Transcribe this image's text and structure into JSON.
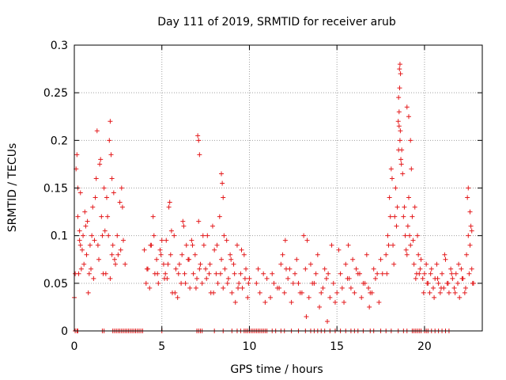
{
  "chart_data": {
    "type": "scatter",
    "title": "Day 111 of 2019, SRMTID for receiver arub",
    "xlabel": "GPS time / hours",
    "ylabel": "SRMTID / TECUs",
    "xlim": [
      0,
      23.3
    ],
    "ylim": [
      0,
      0.3
    ],
    "xticks": [
      "0",
      "5",
      "10",
      "15",
      "20"
    ],
    "xtick_values": [
      0,
      5,
      10,
      15,
      20
    ],
    "yticks": [
      "0",
      "0.05",
      "0.1",
      "0.15",
      "0.2",
      "0.25",
      "0.3"
    ],
    "ytick_values": [
      0,
      0.05,
      0.1,
      0.15,
      0.2,
      0.25,
      0.3
    ],
    "grid": true,
    "marker": "plus",
    "color": "#e41a1c",
    "series": [
      {
        "name": "SRMTID",
        "x": [
          0.0,
          0.1,
          0.15,
          0.2,
          0.25,
          0.3,
          0.35,
          0.4,
          0.5,
          0.6,
          0.7,
          0.8,
          0.9,
          1.0,
          1.1,
          1.2,
          1.3,
          1.4,
          1.5,
          1.6,
          1.7,
          1.8,
          1.9,
          2.0,
          2.05,
          2.1,
          2.15,
          2.2,
          2.3,
          2.5,
          2.6,
          2.7,
          2.75,
          2.8,
          2.9,
          0.05,
          0.3,
          0.55,
          0.75,
          1.05,
          1.35,
          1.65,
          1.95,
          2.25,
          2.45,
          0.2,
          0.45,
          0.65,
          0.85,
          1.15,
          1.45,
          1.75,
          2.05,
          2.35,
          2.65,
          0.35,
          0.95,
          1.25,
          1.55,
          1.85,
          2.15,
          4.0,
          4.1,
          4.2,
          4.3,
          4.4,
          4.5,
          4.6,
          4.7,
          4.8,
          4.9,
          5.0,
          5.1,
          5.2,
          5.3,
          5.4,
          5.5,
          5.6,
          5.7,
          5.8,
          5.9,
          6.0,
          6.1,
          6.2,
          6.3,
          6.4,
          6.5,
          6.6,
          6.7,
          6.8,
          6.9,
          7.0,
          7.1,
          7.2,
          7.3,
          7.4,
          7.5,
          7.6,
          7.7,
          7.8,
          7.9,
          8.0,
          8.1,
          8.2,
          8.3,
          8.4,
          8.5,
          8.6,
          8.7,
          8.8,
          8.9,
          9.0,
          9.1,
          9.2,
          9.3,
          9.4,
          9.5,
          9.6,
          9.7,
          9.8,
          9.9,
          10.0,
          4.15,
          4.35,
          4.55,
          4.75,
          4.95,
          5.15,
          5.35,
          5.55,
          5.75,
          5.95,
          6.15,
          6.35,
          6.55,
          6.75,
          6.95,
          7.15,
          7.35,
          7.55,
          7.75,
          7.95,
          8.15,
          8.35,
          8.55,
          8.75,
          8.95,
          9.15,
          9.35,
          9.55,
          9.75,
          9.95,
          5.45,
          5.25,
          6.25,
          7.05,
          7.1,
          7.15,
          8.4,
          8.45,
          8.5,
          10.4,
          10.6,
          10.8,
          11.0,
          11.2,
          11.4,
          11.6,
          11.8,
          12.0,
          12.2,
          12.4,
          12.6,
          12.8,
          13.0,
          13.2,
          13.4,
          13.6,
          13.8,
          14.0,
          14.2,
          14.4,
          14.6,
          14.8,
          15.0,
          15.2,
          15.4,
          15.6,
          15.8,
          16.0,
          16.2,
          16.4,
          16.6,
          16.8,
          17.0,
          17.2,
          17.4,
          17.6,
          10.5,
          10.9,
          11.3,
          11.7,
          12.1,
          12.5,
          12.9,
          13.3,
          13.7,
          14.1,
          14.5,
          14.9,
          15.3,
          15.7,
          16.1,
          16.5,
          16.9,
          17.3,
          11.9,
          12.3,
          12.7,
          13.1,
          13.5,
          13.9,
          14.3,
          14.7,
          15.1,
          15.5,
          15.9,
          16.3,
          16.7,
          17.1,
          17.5,
          12.05,
          13.25,
          14.45,
          15.65,
          16.85,
          17.8,
          17.9,
          18.0,
          18.1,
          18.2,
          18.3,
          18.4,
          18.5,
          18.55,
          18.6,
          18.65,
          18.7,
          18.8,
          18.9,
          19.0,
          19.1,
          19.2,
          19.3,
          19.4,
          19.5,
          19.6,
          19.7,
          19.8,
          17.85,
          17.95,
          18.05,
          18.15,
          18.25,
          18.35,
          18.45,
          18.52,
          18.58,
          18.62,
          18.68,
          18.75,
          18.85,
          18.95,
          19.05,
          19.15,
          19.25,
          19.35,
          19.45,
          19.55,
          19.65,
          19.75,
          18.57,
          18.6,
          18.63,
          18.55,
          18.52,
          19.0,
          19.1,
          19.2,
          19.9,
          20.0,
          20.1,
          20.2,
          20.3,
          20.4,
          20.5,
          20.6,
          20.7,
          20.8,
          20.9,
          21.0,
          21.1,
          21.2,
          21.3,
          21.4,
          21.5,
          21.6,
          21.7,
          21.8,
          21.9,
          22.0,
          22.1,
          22.2,
          22.3,
          22.4,
          22.5,
          22.6,
          22.7,
          22.8,
          19.95,
          20.15,
          20.35,
          20.55,
          20.75,
          20.95,
          21.15,
          21.35,
          21.55,
          21.75,
          21.95,
          22.15,
          22.35,
          22.55,
          22.75,
          22.45,
          22.5,
          22.6,
          22.65,
          22.7
        ],
        "y": [
          0.035,
          0.17,
          0.185,
          0.12,
          0.06,
          0.095,
          0.145,
          0.065,
          0.1,
          0.125,
          0.08,
          0.04,
          0.09,
          0.1,
          0.055,
          0.14,
          0.21,
          0.075,
          0.18,
          0.1,
          0.15,
          0.06,
          0.12,
          0.2,
          0.22,
          0.185,
          0.16,
          0.09,
          0.075,
          0.08,
          0.135,
          0.15,
          0.13,
          0.095,
          0.07,
          0.06,
          0.105,
          0.07,
          0.115,
          0.13,
          0.09,
          0.06,
          0.1,
          0.145,
          0.1,
          0.15,
          0.085,
          0.11,
          0.06,
          0.095,
          0.175,
          0.105,
          0.055,
          0.07,
          0.085,
          0.09,
          0.065,
          0.16,
          0.12,
          0.14,
          0.08,
          0.085,
          0.05,
          0.065,
          0.045,
          0.09,
          0.12,
          0.06,
          0.075,
          0.05,
          0.085,
          0.095,
          0.07,
          0.06,
          0.055,
          0.13,
          0.08,
          0.04,
          0.1,
          0.065,
          0.035,
          0.07,
          0.05,
          0.115,
          0.06,
          0.09,
          0.075,
          0.045,
          0.095,
          0.06,
          0.08,
          0.055,
          0.115,
          0.07,
          0.05,
          0.09,
          0.065,
          0.1,
          0.06,
          0.04,
          0.11,
          0.085,
          0.06,
          0.05,
          0.12,
          0.075,
          0.045,
          0.065,
          0.095,
          0.055,
          0.08,
          0.04,
          0.07,
          0.03,
          0.09,
          0.05,
          0.06,
          0.045,
          0.08,
          0.065,
          0.035,
          0.055,
          0.065,
          0.09,
          0.1,
          0.06,
          0.08,
          0.055,
          0.07,
          0.105,
          0.04,
          0.06,
          0.08,
          0.05,
          0.075,
          0.09,
          0.045,
          0.065,
          0.1,
          0.055,
          0.07,
          0.04,
          0.09,
          0.06,
          0.1,
          0.05,
          0.075,
          0.06,
          0.045,
          0.085,
          0.055,
          0.05,
          0.135,
          0.095,
          0.11,
          0.205,
          0.2,
          0.185,
          0.165,
          0.155,
          0.14,
          0.05,
          0.04,
          0.06,
          0.055,
          0.035,
          0.05,
          0.045,
          0.07,
          0.04,
          0.055,
          0.03,
          0.06,
          0.05,
          0.04,
          0.065,
          0.035,
          0.05,
          0.06,
          0.025,
          0.045,
          0.055,
          0.035,
          0.05,
          0.04,
          0.06,
          0.03,
          0.055,
          0.045,
          0.04,
          0.06,
          0.035,
          0.05,
          0.045,
          0.04,
          0.055,
          0.03,
          0.06,
          0.065,
          0.03,
          0.06,
          0.045,
          0.065,
          0.05,
          0.04,
          0.095,
          0.05,
          0.04,
          0.06,
          0.03,
          0.045,
          0.055,
          0.065,
          0.05,
          0.04,
          0.06,
          0.08,
          0.065,
          0.075,
          0.1,
          0.07,
          0.08,
          0.065,
          0.09,
          0.085,
          0.07,
          0.075,
          0.06,
          0.08,
          0.065,
          0.075,
          0.095,
          0.015,
          0.01,
          0.09,
          0.025,
          0.08,
          0.1,
          0.14,
          0.17,
          0.09,
          0.12,
          0.11,
          0.22,
          0.23,
          0.2,
          0.18,
          0.19,
          0.12,
          0.1,
          0.08,
          0.14,
          0.09,
          0.12,
          0.07,
          0.055,
          0.1,
          0.06,
          0.075,
          0.06,
          0.09,
          0.12,
          0.16,
          0.07,
          0.15,
          0.13,
          0.245,
          0.255,
          0.21,
          0.175,
          0.165,
          0.13,
          0.085,
          0.11,
          0.1,
          0.17,
          0.095,
          0.13,
          0.06,
          0.08,
          0.065,
          0.275,
          0.28,
          0.27,
          0.215,
          0.19,
          0.235,
          0.225,
          0.2,
          0.055,
          0.06,
          0.07,
          0.05,
          0.04,
          0.065,
          0.045,
          0.055,
          0.07,
          0.05,
          0.04,
          0.06,
          0.045,
          0.075,
          0.05,
          0.04,
          0.065,
          0.055,
          0.045,
          0.06,
          0.05,
          0.035,
          0.065,
          0.055,
          0.04,
          0.08,
          0.1,
          0.09,
          0.065,
          0.05,
          0.04,
          0.05,
          0.06,
          0.035,
          0.055,
          0.045,
          0.08,
          0.05,
          0.06,
          0.04,
          0.07,
          0.055,
          0.045,
          0.06,
          0.05,
          0.14,
          0.15,
          0.125,
          0.11,
          0.105
        ],
        "zero_x": [
          0.05,
          0.15,
          0.2,
          1.6,
          1.7,
          2.2,
          2.3,
          2.4,
          2.5,
          2.6,
          2.7,
          2.8,
          2.9,
          3.0,
          3.1,
          3.2,
          3.3,
          3.4,
          3.5,
          3.6,
          3.7,
          3.8,
          3.9,
          5.0,
          7.0,
          7.1,
          7.2,
          7.3,
          8.0,
          8.5,
          9.0,
          9.3,
          9.5,
          9.7,
          9.8,
          9.9,
          10.0,
          10.1,
          10.2,
          10.3,
          10.4,
          10.5,
          10.6,
          10.7,
          10.8,
          10.9,
          11.0,
          11.3,
          11.5,
          11.8,
          12.0,
          12.4,
          12.8,
          13.2,
          13.5,
          13.7,
          13.9,
          14.1,
          14.3,
          14.6,
          14.9,
          15.2,
          15.5,
          15.8,
          16.0,
          16.2,
          16.5,
          16.9,
          17.1,
          17.5,
          17.8,
          18.1,
          18.5,
          18.8,
          19.0,
          19.3,
          19.4,
          19.5,
          19.6,
          19.7,
          19.8,
          20.0,
          20.1,
          20.2,
          20.4,
          20.6,
          20.8,
          21.0,
          21.2,
          21.4
        ]
      }
    ]
  }
}
